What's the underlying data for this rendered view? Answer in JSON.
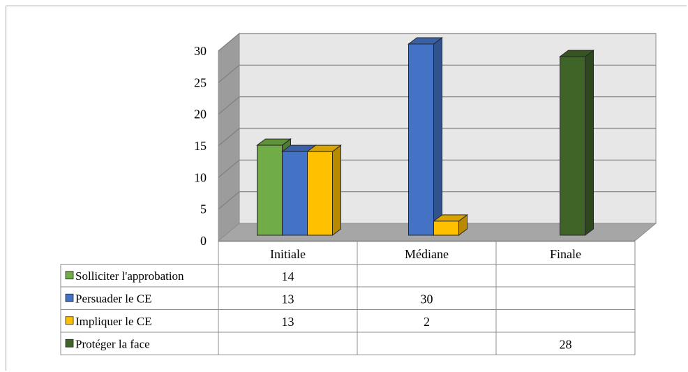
{
  "chart_data": {
    "type": "bar",
    "title": "",
    "xlabel": "",
    "ylabel": "",
    "categories": [
      "Initiale",
      "Médiane",
      "Finale"
    ],
    "ylim": [
      0,
      30
    ],
    "yticks": [
      "0",
      "5",
      "10",
      "15",
      "20",
      "25",
      "30"
    ],
    "grid": true,
    "three_d": true,
    "legend_placement": "data-table-left",
    "series": [
      {
        "name": "Solliciter l'approbation",
        "color": "#70ad47",
        "values": [
          14,
          null,
          null
        ],
        "labels": [
          "14",
          "",
          ""
        ]
      },
      {
        "name": "Persuader le CE",
        "color": "#4472c4",
        "values": [
          13,
          30,
          null
        ],
        "labels": [
          "13",
          "30",
          ""
        ]
      },
      {
        "name": "Impliquer le CE",
        "color": "#ffc000",
        "values": [
          13,
          2,
          null
        ],
        "labels": [
          "13",
          "2",
          ""
        ]
      },
      {
        "name": "Protéger la face",
        "color": "#3f6428",
        "values": [
          null,
          null,
          28
        ],
        "labels": [
          "",
          "",
          "28"
        ]
      }
    ]
  }
}
